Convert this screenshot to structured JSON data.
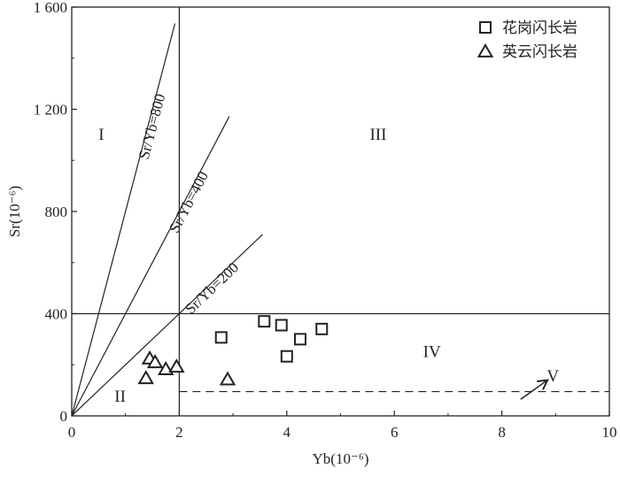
{
  "chart_data": {
    "type": "scatter",
    "xlabel": "Yb(10⁻⁶)",
    "ylabel": "Sr(10⁻⁶)",
    "xlim": [
      0,
      10
    ],
    "ylim": [
      0,
      1600
    ],
    "xticks": [
      0,
      2,
      4,
      6,
      8,
      10
    ],
    "xtick_labels": [
      "0",
      "2",
      "4",
      "6",
      "8",
      "10"
    ],
    "yticks": [
      0,
      400,
      800,
      1200,
      1600
    ],
    "ytick_labels": [
      "0",
      "400",
      "800",
      "1 200",
      "1 600"
    ],
    "grid": false,
    "legend_position": "top-right",
    "series": [
      {
        "name": "花岗闪长岩",
        "marker": "square",
        "points": [
          {
            "x": 2.78,
            "y": 307
          },
          {
            "x": 3.58,
            "y": 370
          },
          {
            "x": 3.9,
            "y": 355
          },
          {
            "x": 4.0,
            "y": 233
          },
          {
            "x": 4.25,
            "y": 300
          },
          {
            "x": 4.65,
            "y": 340
          }
        ]
      },
      {
        "name": "英云闪长岩",
        "marker": "triangle",
        "points": [
          {
            "x": 1.38,
            "y": 145
          },
          {
            "x": 1.45,
            "y": 222
          },
          {
            "x": 1.55,
            "y": 207
          },
          {
            "x": 1.75,
            "y": 180
          },
          {
            "x": 1.95,
            "y": 190
          },
          {
            "x": 2.9,
            "y": 140
          }
        ]
      }
    ],
    "ratio_lines": [
      {
        "label": "Sr/Yb=800",
        "slope": 800,
        "x_end": 1.92
      },
      {
        "label": "Sr/Yb=400",
        "slope": 400,
        "x_end": 2.93
      },
      {
        "label": "Sr/Yb=200",
        "slope": 200,
        "x_end": 3.55
      }
    ],
    "boundaries": {
      "vertical_x": 2,
      "horizontal_y": 400,
      "dashed_y": 95
    },
    "regions": [
      {
        "label": "I",
        "x": 0.55,
        "y": 1080
      },
      {
        "label": "II",
        "x": 0.9,
        "y": 55
      },
      {
        "label": "III",
        "x": 5.7,
        "y": 1080
      },
      {
        "label": "IV",
        "x": 6.7,
        "y": 230
      },
      {
        "label": "V",
        "x": 8.95,
        "y": 135
      }
    ],
    "arrow": {
      "from": [
        8.35,
        65
      ],
      "to": [
        8.85,
        140
      ]
    }
  }
}
